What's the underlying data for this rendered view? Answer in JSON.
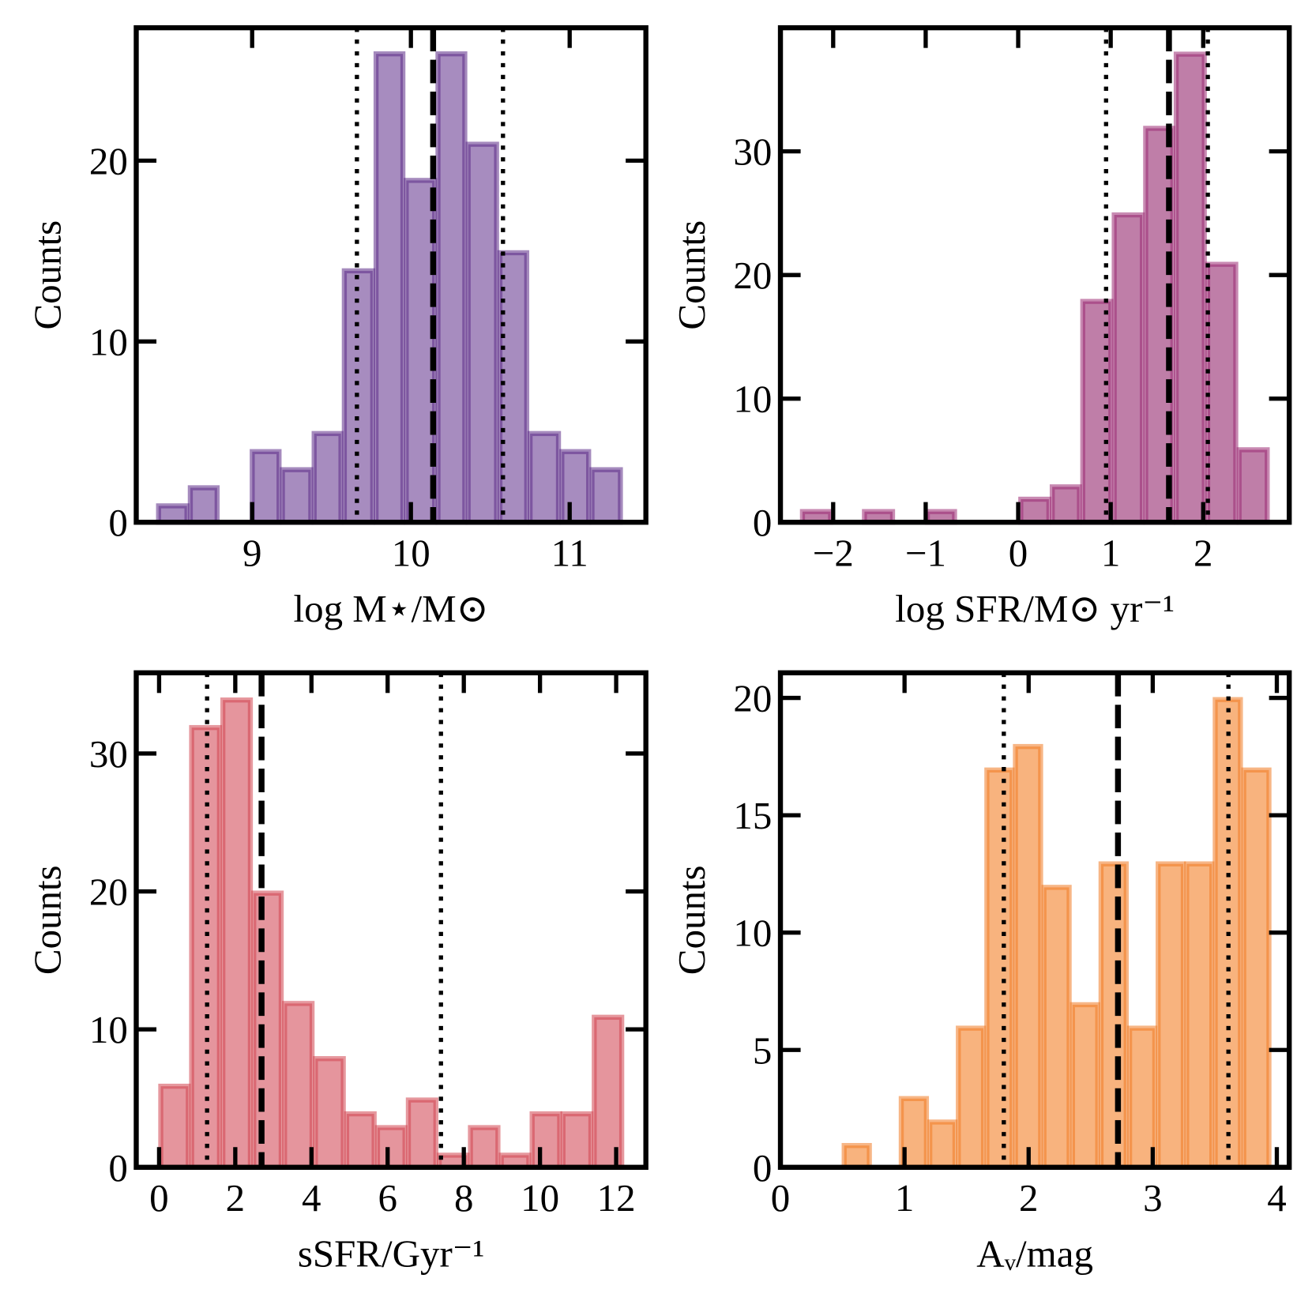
{
  "chart_data": [
    {
      "type": "histogram",
      "xlabel": "log M⋆/M⊙",
      "ylabel": "Counts",
      "color": "#5b2a86",
      "fill": "#9d80b8",
      "bins": [
        8.4,
        8.6,
        8.79,
        8.99,
        9.18,
        9.38,
        9.57,
        9.77,
        9.96,
        10.16,
        10.35,
        10.55,
        10.74,
        10.94,
        11.13,
        11.33
      ],
      "values": [
        1,
        2,
        0,
        4,
        3,
        5,
        14,
        26,
        19,
        26,
        21,
        15,
        5,
        4,
        3
      ],
      "xlim": [
        8.27,
        11.48
      ],
      "ylim": [
        0,
        27.35
      ],
      "xticks": [
        9,
        10,
        11
      ],
      "yticks": [
        0,
        10,
        20
      ],
      "vlines": [
        {
          "x": 9.66,
          "style": "dotted"
        },
        {
          "x": 10.14,
          "style": "dashed"
        },
        {
          "x": 10.58,
          "style": "dotted"
        }
      ]
    },
    {
      "type": "histogram",
      "xlabel": "log SFR/M⊙ yr⁻¹",
      "ylabel": "Counts",
      "color": "#9b2a73",
      "fill": "#b8709f",
      "bins": [
        -2.35,
        -2.01,
        -1.68,
        -1.34,
        -1.0,
        -0.67,
        -0.33,
        0.01,
        0.35,
        0.68,
        1.02,
        1.36,
        1.69,
        2.03,
        2.37,
        2.71
      ],
      "values": [
        1,
        0,
        1,
        0,
        1,
        0,
        0,
        2,
        3,
        18,
        25,
        32,
        38,
        21,
        6
      ],
      "xlim": [
        -2.57,
        2.93
      ],
      "ylim": [
        0,
        40.0
      ],
      "xticks": [
        {
          "value": -2,
          "label": "−2"
        },
        {
          "value": -1,
          "label": "−1"
        },
        0,
        1,
        2
      ],
      "yticks": [
        0,
        10,
        20,
        30
      ],
      "vlines": [
        {
          "x": 0.95,
          "style": "dotted"
        },
        {
          "x": 1.63,
          "style": "dashed"
        },
        {
          "x": 2.05,
          "style": "dotted"
        }
      ]
    },
    {
      "type": "histogram",
      "xlabel": "sSFR/Gyr⁻¹",
      "ylabel": "Counts",
      "color": "#d2444f",
      "fill": "#e28a92",
      "bins": [
        0,
        0.81,
        1.63,
        2.44,
        3.25,
        4.06,
        4.88,
        5.69,
        6.5,
        7.31,
        8.13,
        8.94,
        9.75,
        10.56,
        11.38,
        12.19
      ],
      "values": [
        6,
        32,
        34,
        20,
        12,
        8,
        4,
        3,
        5,
        1,
        3,
        1,
        4,
        4,
        11
      ],
      "xlim": [
        -0.6,
        12.78
      ],
      "ylim": [
        0,
        35.85
      ],
      "xticks": [
        0,
        2,
        4,
        6,
        8,
        10,
        12
      ],
      "yticks": [
        0,
        10,
        20,
        30
      ],
      "vlines": [
        {
          "x": 1.26,
          "style": "dotted"
        },
        {
          "x": 2.69,
          "style": "dashed"
        },
        {
          "x": 7.4,
          "style": "dotted"
        }
      ]
    },
    {
      "type": "histogram",
      "xlabel": "Aᵥ/mag",
      "ylabel": "Counts",
      "color": "#f07a22",
      "fill": "#f7ab70",
      "bins": [
        0.5,
        0.73,
        0.96,
        1.19,
        1.42,
        1.65,
        1.88,
        2.11,
        2.34,
        2.57,
        2.8,
        3.03,
        3.26,
        3.49,
        3.72,
        3.95
      ],
      "values": [
        1,
        0,
        3,
        2,
        6,
        17,
        18,
        12,
        7,
        13,
        6,
        13,
        13,
        20,
        17
      ],
      "xlim": [
        0,
        4.1
      ],
      "ylim": [
        0,
        21.07
      ],
      "xticks": [
        0,
        1,
        2,
        3,
        4
      ],
      "yticks": [
        0,
        5,
        10,
        15,
        20
      ],
      "vlines": [
        {
          "x": 1.8,
          "style": "dotted"
        },
        {
          "x": 2.72,
          "style": "dashed"
        },
        {
          "x": 3.61,
          "style": "dotted"
        }
      ]
    }
  ]
}
